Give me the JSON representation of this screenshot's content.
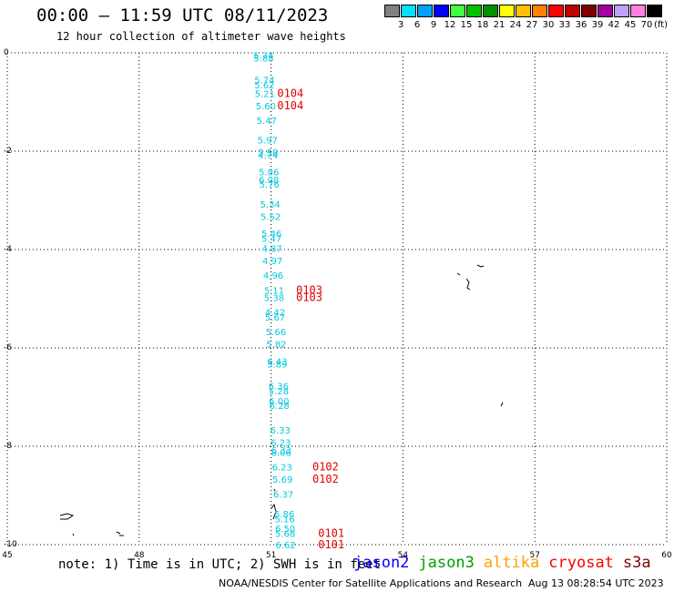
{
  "header": {
    "title": "00:00 – 11:59 UTC 08/11/2023",
    "subtitle": "12 hour collection of altimeter wave heights"
  },
  "colorbar": {
    "colors": [
      "#808080",
      "#00e0ff",
      "#00a0ff",
      "#0000ff",
      "#40ff40",
      "#00c000",
      "#009000",
      "#ffff00",
      "#ffc000",
      "#ff8000",
      "#ff0000",
      "#c00000",
      "#800000",
      "#a000a0",
      "#c0a0ff",
      "#ff80e0",
      "#000000"
    ],
    "ticks": [
      "3",
      "6",
      "9",
      "12",
      "15",
      "18",
      "21",
      "24",
      "27",
      "30",
      "33",
      "36",
      "39",
      "42",
      "45",
      "70"
    ],
    "unit": "(ft)"
  },
  "map": {
    "lon_range": [
      45,
      60
    ],
    "lat_range": [
      -10,
      0
    ],
    "x_ticks": [
      "45",
      "48",
      "51",
      "54",
      "57",
      "60"
    ],
    "y_ticks": [
      "0",
      "-2",
      "-4",
      "-6",
      "-8",
      "-10"
    ],
    "grid": "dotted"
  },
  "swh_points": [
    {
      "lat": -0.05,
      "lon": 50.6,
      "v": "5.74"
    },
    {
      "lat": -0.1,
      "lon": 50.6,
      "v": "5.88"
    },
    {
      "lat": -0.55,
      "lon": 50.62,
      "v": "5.74"
    },
    {
      "lat": -0.65,
      "lon": 50.62,
      "v": "5.62"
    },
    {
      "lat": -0.82,
      "lon": 50.63,
      "v": "5.21"
    },
    {
      "lat": -1.07,
      "lon": 50.65,
      "v": "5.60"
    },
    {
      "lat": -1.37,
      "lon": 50.67,
      "v": "5.47"
    },
    {
      "lat": -1.77,
      "lon": 50.69,
      "v": "5.97"
    },
    {
      "lat": -2.02,
      "lon": 50.7,
      "v": "5.58"
    },
    {
      "lat": -2.07,
      "lon": 50.7,
      "v": "4.74"
    },
    {
      "lat": -2.42,
      "lon": 50.72,
      "v": "5.86"
    },
    {
      "lat": -2.57,
      "lon": 50.72,
      "v": "6.08"
    },
    {
      "lat": -2.67,
      "lon": 50.73,
      "v": "5.76"
    },
    {
      "lat": -3.07,
      "lon": 50.75,
      "v": "5.34"
    },
    {
      "lat": -3.32,
      "lon": 50.76,
      "v": "5.52"
    },
    {
      "lat": -3.67,
      "lon": 50.78,
      "v": "5.46"
    },
    {
      "lat": -3.77,
      "lon": 50.78,
      "v": "5.47"
    },
    {
      "lat": -3.97,
      "lon": 50.79,
      "v": "4.87"
    },
    {
      "lat": -4.22,
      "lon": 50.8,
      "v": "4.97"
    },
    {
      "lat": -4.52,
      "lon": 50.82,
      "v": "4.96"
    },
    {
      "lat": -4.82,
      "lon": 50.84,
      "v": "5.11"
    },
    {
      "lat": -4.97,
      "lon": 50.84,
      "v": "5.38"
    },
    {
      "lat": -5.27,
      "lon": 50.86,
      "v": "4.42"
    },
    {
      "lat": -5.37,
      "lon": 50.86,
      "v": "5.67"
    },
    {
      "lat": -5.67,
      "lon": 50.88,
      "v": "5.66"
    },
    {
      "lat": -5.92,
      "lon": 50.89,
      "v": "5.82"
    },
    {
      "lat": -6.27,
      "lon": 50.91,
      "v": "6.43"
    },
    {
      "lat": -6.32,
      "lon": 50.91,
      "v": "5.89"
    },
    {
      "lat": -6.77,
      "lon": 50.94,
      "v": "6.36"
    },
    {
      "lat": -6.87,
      "lon": 50.94,
      "v": "5.28"
    },
    {
      "lat": -7.07,
      "lon": 50.95,
      "v": "6.00"
    },
    {
      "lat": -7.17,
      "lon": 50.96,
      "v": "6.28"
    },
    {
      "lat": -7.67,
      "lon": 50.98,
      "v": "6.33"
    },
    {
      "lat": -7.92,
      "lon": 50.99,
      "v": "6.23"
    },
    {
      "lat": -8.07,
      "lon": 51.0,
      "v": "6.33"
    },
    {
      "lat": -8.12,
      "lon": 51.0,
      "v": "6.06"
    },
    {
      "lat": -8.42,
      "lon": 51.02,
      "v": "6.23"
    },
    {
      "lat": -8.67,
      "lon": 51.03,
      "v": "5.69"
    },
    {
      "lat": -8.97,
      "lon": 51.05,
      "v": "6.37"
    },
    {
      "lat": -9.37,
      "lon": 51.07,
      "v": "5.86"
    },
    {
      "lat": -9.47,
      "lon": 51.08,
      "v": "5.16"
    },
    {
      "lat": -9.67,
      "lon": 51.09,
      "v": "6.50"
    },
    {
      "lat": -9.77,
      "lon": 51.09,
      "v": "5.68"
    },
    {
      "lat": -10.0,
      "lon": 51.1,
      "v": "6.62"
    }
  ],
  "time_labels": [
    {
      "lat": -0.82,
      "lon": 51.14,
      "t": "0104"
    },
    {
      "lat": -1.07,
      "lon": 51.14,
      "t": "0104"
    },
    {
      "lat": -4.82,
      "lon": 51.57,
      "t": "0103"
    },
    {
      "lat": -4.97,
      "lon": 51.57,
      "t": "0103"
    },
    {
      "lat": -8.42,
      "lon": 51.94,
      "t": "0102"
    },
    {
      "lat": -8.67,
      "lon": 51.94,
      "t": "0102"
    },
    {
      "lat": -9.77,
      "lon": 52.07,
      "t": "0101"
    },
    {
      "lat": -10.0,
      "lon": 52.07,
      "t": "0101"
    }
  ],
  "swh_color": "#00c8e0",
  "time_color": "#e00000",
  "footer": {
    "note": "note: 1) Time is in UTC; 2) SWH is in feet",
    "satellites": [
      {
        "name": "jason2",
        "color": "#0000ff"
      },
      {
        "name": "jason3",
        "color": "#00a000"
      },
      {
        "name": "altika",
        "color": "#ffa000"
      },
      {
        "name": "cryosat",
        "color": "#ff0000"
      },
      {
        "name": "s3a",
        "color": "#800000"
      }
    ],
    "credit": "NOAA/NESDIS Center for Satellite Applications and Research",
    "timestamp": "Aug 13 08:28:54 UTC 2023"
  }
}
